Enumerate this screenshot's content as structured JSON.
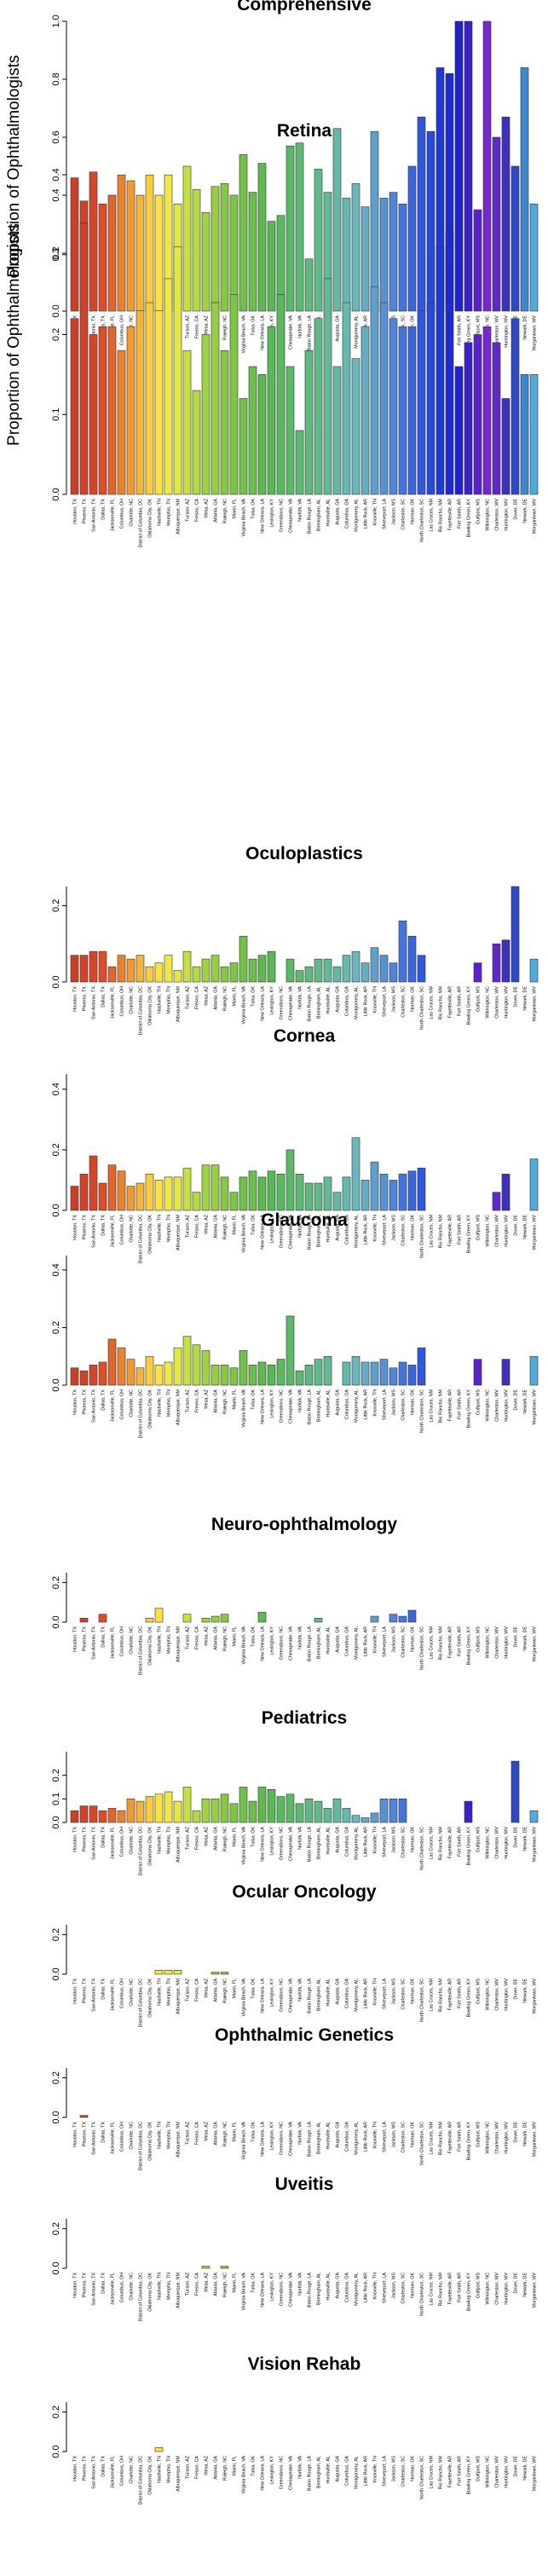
{
  "cities": [
    "Houston, TX",
    "Phoenix, TX",
    "San Antonio, TX",
    "Dallas, TX",
    "Jacksonville, FL",
    "Columbus, OH",
    "Charlotte, NC",
    "District of Columbia, DC",
    "Oklahoma City, OK",
    "Nashville, TN",
    "Memphis, TN",
    "Albuquerque, NM",
    "Tucson, AZ",
    "Fresno, CA",
    "Mesa, AZ",
    "Atlanta, GA",
    "Raleigh, NC",
    "Miami, FL",
    "Virginia Beach, VA",
    "Tulsa, OK",
    "New Orleans, LA",
    "Lexington, KY",
    "Greensboro, NC",
    "Chesapeake, VA",
    "Norfolk, VA",
    "Baton Rouge, LA",
    "Birmingham, AL",
    "Huntsville, AL",
    "Augusta, GA",
    "Columbus, GA",
    "Montgomery, AL",
    "Little Rock, AR",
    "Knoxville, TN",
    "Shreveport, LA",
    "Jackson, MS",
    "Charleston, SC",
    "Norman, OK",
    "North Charleston, SC",
    "Las Cruces, NM",
    "Rio Rancho, NM",
    "Fayetteville, AR",
    "Fort Smith, AR",
    "Bowling Green, KY",
    "Gulfport, MS",
    "Wilmington, NC",
    "Charleston, WV",
    "Huntington, WV",
    "Dover, DE",
    "Newark, DE",
    "Morgantown, WV"
  ],
  "colors": [
    "#c6402a",
    "#cf4429",
    "#d4472b",
    "#da4e2a",
    "#e0662d",
    "#e78432",
    "#ee9b35",
    "#f2b43a",
    "#f7cc3e",
    "#f9e142",
    "#f0e846",
    "#e2e649",
    "#c7df47",
    "#b3d946",
    "#a0d245",
    "#96cd45",
    "#88c744",
    "#7ec545",
    "#72c049",
    "#6bbd4e",
    "#5fb950",
    "#59b857",
    "#5ab85f",
    "#5cb869",
    "#5db874",
    "#5fb87d",
    "#61b889",
    "#64b896",
    "#66b8a4",
    "#68b8b2",
    "#69b6bd",
    "#66acc4",
    "#5f9fcb",
    "#5892d1",
    "#4f84d7",
    "#4575da",
    "#3a66dc",
    "#3057dc",
    "#2748d8",
    "#2038d3",
    "#1b2bce",
    "#2222c8",
    "#3a20c9",
    "#5a22cc",
    "#7627ce",
    "#5e2ac6",
    "#3e30bd",
    "#2f49c3",
    "#3c8acd",
    "#50aadb"
  ],
  "y_axis_label": "Proportion of Ophthalmologists",
  "chart_data": [
    {
      "type": "bar",
      "title": "Comprehensive",
      "ylim": [
        0,
        1
      ],
      "yticks": [
        "0.0",
        "0.2",
        "0.4",
        "0.6",
        "0.8",
        "1.0"
      ],
      "ylabel": "Proportion of Ophthalmologists",
      "values": [
        0.46,
        0.38,
        0.48,
        0.37,
        0.4,
        0.47,
        0.45,
        0.4,
        0.47,
        0.4,
        0.47,
        0.37,
        0.5,
        0.42,
        0.34,
        0.43,
        0.44,
        0.4,
        0.54,
        0.41,
        0.51,
        0.31,
        0.33,
        0.57,
        0.58,
        0.18,
        0.49,
        0.41,
        0.63,
        0.39,
        0.44,
        0.36,
        0.62,
        0.39,
        0.41,
        0.37,
        0.5,
        0.67,
        0.62,
        0.84,
        0.82,
        1.0,
        1.0,
        0.35,
        1.0,
        0.6,
        0.67,
        0.5,
        0.84,
        0.37
      ]
    },
    {
      "type": "bar",
      "title": "Retina",
      "ylim": [
        0,
        0.4
      ],
      "yticks": [
        "0.0",
        "0.1",
        "0.2",
        "0.3",
        "0.4"
      ],
      "ylabel": "Proportion of Ophthalmologists",
      "values": [
        0.22,
        0.34,
        0.2,
        0.21,
        0.21,
        0.18,
        0.21,
        0.23,
        0.24,
        0.23,
        0.27,
        0.31,
        0.18,
        0.13,
        0.2,
        0.24,
        0.18,
        0.25,
        0.12,
        0.16,
        0.15,
        0.21,
        0.25,
        0.16,
        0.08,
        0.18,
        0.22,
        0.27,
        0.16,
        0.24,
        0.17,
        0.21,
        0.26,
        0.24,
        0.22,
        0.21,
        0.21,
        0.23,
        0.24,
        0.31,
        0.33,
        0.16,
        0.19,
        0.2,
        0.21,
        0.19,
        0.12,
        0.22,
        0.15,
        0.15
      ]
    },
    {
      "type": "bar",
      "title": "Oculoplastics",
      "ylim": [
        0,
        0.25
      ],
      "yticks": [
        "0.0",
        "0.2"
      ],
      "values": [
        0.07,
        0.07,
        0.08,
        0.08,
        0.04,
        0.07,
        0.06,
        0.07,
        0.04,
        0.05,
        0.07,
        0.03,
        0.08,
        0.04,
        0.06,
        0.07,
        0.04,
        0.05,
        0.12,
        0.06,
        0.07,
        0.08,
        0.0,
        0.06,
        0.03,
        0.04,
        0.06,
        0.06,
        0.04,
        0.07,
        0.08,
        0.05,
        0.09,
        0.07,
        0.05,
        0.16,
        0.12,
        0.07,
        0.0,
        0.0,
        0.0,
        0.0,
        0.0,
        0.05,
        0.0,
        0.1,
        0.11,
        0.25,
        0.0,
        0.06
      ]
    },
    {
      "type": "bar",
      "title": "Cornea",
      "ylim": [
        0,
        0.45
      ],
      "yticks": [
        "0.0",
        "0.2",
        "0.4"
      ],
      "values": [
        0.08,
        0.12,
        0.18,
        0.09,
        0.15,
        0.13,
        0.08,
        0.09,
        0.12,
        0.1,
        0.11,
        0.11,
        0.14,
        0.06,
        0.15,
        0.15,
        0.11,
        0.06,
        0.11,
        0.13,
        0.11,
        0.13,
        0.12,
        0.2,
        0.12,
        0.09,
        0.09,
        0.11,
        0.06,
        0.11,
        0.24,
        0.1,
        0.16,
        0.12,
        0.1,
        0.12,
        0.13,
        0.14,
        0.0,
        0.0,
        0.0,
        0.0,
        0.0,
        0.0,
        0.0,
        0.06,
        0.12,
        0.0,
        0.0,
        0.17
      ]
    },
    {
      "type": "bar",
      "title": "Glaucoma",
      "ylim": [
        0,
        0.45
      ],
      "yticks": [
        "0.0",
        "0.2",
        "0.4"
      ],
      "values": [
        0.06,
        0.05,
        0.07,
        0.08,
        0.16,
        0.13,
        0.09,
        0.06,
        0.1,
        0.07,
        0.08,
        0.13,
        0.17,
        0.14,
        0.12,
        0.07,
        0.07,
        0.06,
        0.12,
        0.07,
        0.08,
        0.07,
        0.09,
        0.24,
        0.05,
        0.07,
        0.09,
        0.1,
        0.0,
        0.08,
        0.1,
        0.08,
        0.08,
        0.09,
        0.06,
        0.08,
        0.07,
        0.13,
        0.0,
        0.0,
        0.0,
        0.0,
        0.0,
        0.09,
        0.0,
        0.0,
        0.09,
        0.0,
        0.0,
        0.1
      ]
    },
    {
      "type": "bar",
      "title": "Neuro-ophthalmology",
      "ylim": [
        0,
        0.25
      ],
      "yticks": [
        "0.0",
        "0.2"
      ],
      "values": [
        0.0,
        0.02,
        0.0,
        0.04,
        0.0,
        0.0,
        0.0,
        0.0,
        0.02,
        0.07,
        0.0,
        0.0,
        0.04,
        0.0,
        0.02,
        0.03,
        0.04,
        0.0,
        0.0,
        0.0,
        0.05,
        0.0,
        0.0,
        0.0,
        0.0,
        0.0,
        0.02,
        0.0,
        0.0,
        0.0,
        0.0,
        0.0,
        0.03,
        0.0,
        0.04,
        0.03,
        0.06,
        0.0,
        0.0,
        0.0,
        0.0,
        0.0,
        0.0,
        0.0,
        0.0,
        0.0,
        0.0,
        0.0,
        0.0,
        0.0
      ]
    },
    {
      "type": "bar",
      "title": "Pediatrics",
      "ylim": [
        0,
        0.3
      ],
      "yticks": [
        "0.0",
        "0.1",
        "0.2"
      ],
      "values": [
        0.05,
        0.07,
        0.07,
        0.05,
        0.06,
        0.05,
        0.1,
        0.09,
        0.11,
        0.12,
        0.13,
        0.09,
        0.15,
        0.05,
        0.1,
        0.1,
        0.12,
        0.08,
        0.15,
        0.09,
        0.15,
        0.14,
        0.11,
        0.12,
        0.08,
        0.1,
        0.09,
        0.06,
        0.1,
        0.06,
        0.03,
        0.02,
        0.04,
        0.1,
        0.1,
        0.1,
        0.0,
        0.0,
        0.0,
        0.0,
        0.0,
        0.0,
        0.09,
        0.0,
        0.0,
        0.0,
        0.0,
        0.26,
        0.0,
        0.05
      ]
    },
    {
      "type": "bar",
      "title": "Ocular Oncology",
      "ylim": [
        0,
        0.25
      ],
      "yticks": [
        "0.0",
        "0.2"
      ],
      "values": [
        0,
        0,
        0,
        0,
        0,
        0,
        0,
        0,
        0,
        0.02,
        0.02,
        0.02,
        0,
        0,
        0,
        0.01,
        0.01,
        0,
        0,
        0,
        0,
        0,
        0,
        0,
        0,
        0,
        0,
        0,
        0,
        0,
        0,
        0,
        0,
        0,
        0,
        0,
        0,
        0,
        0,
        0,
        0,
        0,
        0,
        0,
        0,
        0,
        0,
        0,
        0,
        0
      ]
    },
    {
      "type": "bar",
      "title": "Ophthalmic Genetics",
      "ylim": [
        0,
        0.25
      ],
      "yticks": [
        "0.0",
        "0.2"
      ],
      "values": [
        0,
        0.01,
        0,
        0,
        0,
        0,
        0,
        0,
        0,
        0,
        0,
        0,
        0,
        0,
        0,
        0,
        0,
        0,
        0,
        0,
        0,
        0,
        0,
        0,
        0,
        0,
        0,
        0,
        0,
        0,
        0,
        0,
        0,
        0,
        0,
        0,
        0,
        0,
        0,
        0,
        0,
        0,
        0,
        0,
        0,
        0,
        0,
        0,
        0,
        0
      ]
    },
    {
      "type": "bar",
      "title": "Uveitis",
      "ylim": [
        0,
        0.25
      ],
      "yticks": [
        "0.0",
        "0.2"
      ],
      "values": [
        0,
        0,
        0,
        0,
        0,
        0,
        0,
        0,
        0,
        0,
        0,
        0,
        0,
        0,
        0.01,
        0,
        0.01,
        0,
        0,
        0,
        0,
        0,
        0,
        0,
        0,
        0,
        0,
        0,
        0,
        0,
        0,
        0,
        0,
        0,
        0,
        0,
        0,
        0,
        0,
        0,
        0,
        0,
        0,
        0,
        0,
        0,
        0,
        0,
        0,
        0
      ]
    },
    {
      "type": "bar",
      "title": "Vision Rehab",
      "ylim": [
        0,
        0.25
      ],
      "yticks": [
        "0.0",
        "0.2"
      ],
      "values": [
        0,
        0,
        0,
        0,
        0,
        0,
        0,
        0,
        0,
        0.02,
        0,
        0,
        0,
        0,
        0,
        0,
        0,
        0,
        0,
        0,
        0,
        0,
        0,
        0,
        0,
        0,
        0,
        0,
        0,
        0,
        0,
        0,
        0,
        0,
        0,
        0,
        0,
        0,
        0,
        0,
        0,
        0,
        0,
        0,
        0,
        0,
        0,
        0,
        0,
        0
      ]
    }
  ]
}
